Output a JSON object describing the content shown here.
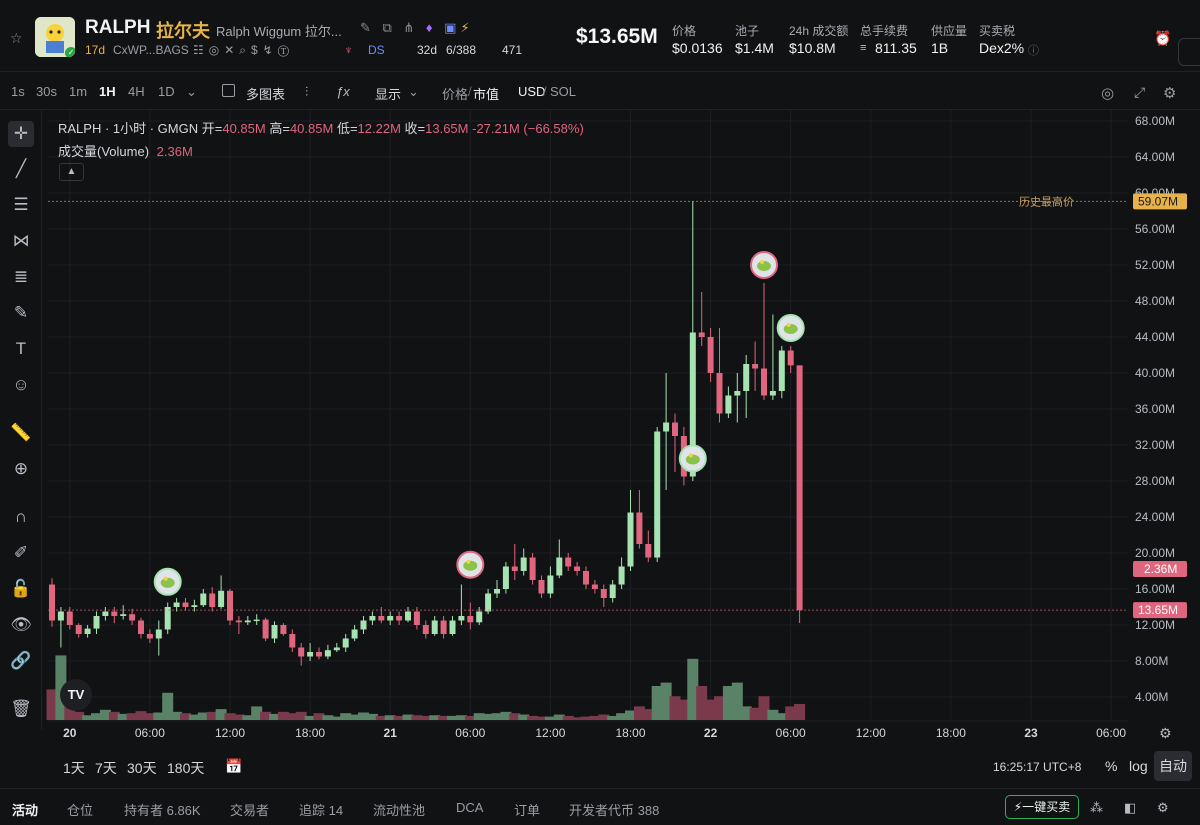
{
  "header": {
    "symbol": "RALPH",
    "name_cn": "拉尔夫",
    "full_name": "Ralph Wiggum 拉尔...",
    "age": "17d",
    "address": "CxWP...BAGS",
    "ds_label": "DS",
    "ds_days": "32d",
    "holders_ratio": "6/388",
    "views": "471",
    "market_cap": "$13.65M",
    "stats": [
      {
        "label": "价格",
        "value": "$0.0136"
      },
      {
        "label": "池子",
        "value": "$1.4M"
      },
      {
        "label": "24h 成交额",
        "value": "$10.8M"
      },
      {
        "label": "总手续费",
        "value": "811.35"
      },
      {
        "label": "供应量",
        "value": "1B"
      },
      {
        "label": "买卖税",
        "value": "Dex2%"
      }
    ]
  },
  "toolbar": {
    "timeframes": [
      "1s",
      "30s",
      "1m",
      "1H",
      "4H",
      "1D"
    ],
    "active_timeframe": "1H",
    "multi_chart": "多图表",
    "display": "显示",
    "price": "价格",
    "mcap": "市值",
    "usd": "USD",
    "sol": "SOL"
  },
  "legend": {
    "title": "RALPH · 1小时 · GMGN",
    "open_label": "开=",
    "open": "40.85M",
    "high_label": "高=",
    "high": "40.85M",
    "low_label": "低=",
    "low": "12.22M",
    "close_label": "收=",
    "close": "13.65M",
    "change": "-27.21M (−66.58%)",
    "volume_label": "成交量(Volume)",
    "volume": "2.36M"
  },
  "chart_data": {
    "type": "candlestick",
    "title": "RALPH · 1小时 · GMGN",
    "y_unit": "M (market cap, USD)",
    "ylim": [
      0,
      70
    ],
    "y_ticks": [
      "4.00M",
      "8.00M",
      "12.00M",
      "16.00M",
      "20.00M",
      "24.00M",
      "28.00M",
      "32.00M",
      "36.00M",
      "40.00M",
      "44.00M",
      "48.00M",
      "52.00M",
      "56.00M",
      "60.00M",
      "64.00M",
      "68.00M"
    ],
    "y_tick_values": [
      4,
      8,
      12,
      16,
      20,
      24,
      28,
      32,
      36,
      40,
      44,
      48,
      52,
      56,
      60,
      64,
      68
    ],
    "x_ticks": [
      "20",
      "06:00",
      "12:00",
      "18:00",
      "21",
      "06:00",
      "12:00",
      "18:00",
      "22",
      "06:00",
      "12:00",
      "18:00",
      "23",
      "06:00"
    ],
    "x_tick_index": [
      2,
      11,
      20,
      29,
      38,
      47,
      56,
      65,
      74,
      83,
      92,
      101,
      110,
      119
    ],
    "ath_label": "历史最高价",
    "ath_value": "59.07M",
    "ath": 59.07,
    "current_label": "13.65M",
    "current": 13.65,
    "volume_label": "2.36M",
    "volume_current": 2.36,
    "candles": [
      [
        0,
        16.5,
        12.5,
        17.2,
        11.8,
        4.5
      ],
      [
        1,
        12.5,
        13.5,
        14.0,
        9.5,
        9.5
      ],
      [
        2,
        13.5,
        12.0,
        14.0,
        11.5,
        2.0
      ],
      [
        3,
        12.0,
        11.0,
        12.2,
        10.6,
        1.2
      ],
      [
        4,
        11.0,
        11.6,
        12.0,
        10.6,
        0.7
      ],
      [
        5,
        11.6,
        13.0,
        13.5,
        11.0,
        1.0
      ],
      [
        6,
        13.0,
        13.5,
        14.0,
        12.5,
        1.5
      ],
      [
        7,
        13.5,
        13.0,
        14.0,
        12.2,
        1.2
      ],
      [
        8,
        13.0,
        13.2,
        14.2,
        12.6,
        0.9
      ],
      [
        9,
        13.2,
        12.5,
        13.8,
        12.0,
        1.0
      ],
      [
        10,
        12.5,
        11.0,
        12.8,
        10.5,
        1.3
      ],
      [
        11,
        11.0,
        10.5,
        11.5,
        10.0,
        1.0
      ],
      [
        12,
        10.5,
        11.5,
        12.5,
        8.6,
        1.1
      ],
      [
        13,
        11.5,
        14.0,
        14.5,
        11.0,
        4.0
      ],
      [
        14,
        14.0,
        14.5,
        15.0,
        13.5,
        1.2
      ],
      [
        15,
        14.5,
        14.0,
        15.0,
        13.6,
        1.0
      ],
      [
        16,
        14.0,
        14.2,
        14.8,
        13.5,
        0.8
      ],
      [
        17,
        14.2,
        15.5,
        16.0,
        14.0,
        1.1
      ],
      [
        18,
        15.5,
        14.0,
        16.2,
        13.5,
        1.2
      ],
      [
        19,
        14.0,
        15.8,
        17.5,
        13.8,
        1.6
      ],
      [
        20,
        15.8,
        12.5,
        16.0,
        12.0,
        1.0
      ],
      [
        21,
        12.5,
        12.3,
        13.0,
        11.0,
        0.8
      ],
      [
        22,
        12.3,
        12.5,
        13.0,
        12.0,
        0.7
      ],
      [
        23,
        12.5,
        12.6,
        13.2,
        12.0,
        2.0
      ],
      [
        24,
        12.6,
        10.5,
        12.8,
        10.2,
        1.2
      ],
      [
        25,
        10.5,
        12.0,
        12.4,
        10.0,
        0.9
      ],
      [
        26,
        12.0,
        11.0,
        12.2,
        10.8,
        1.2
      ],
      [
        27,
        11.0,
        9.5,
        11.5,
        9.0,
        1.0
      ],
      [
        28,
        9.5,
        8.5,
        10.0,
        7.5,
        1.2
      ],
      [
        29,
        8.5,
        9.0,
        10.0,
        8.0,
        0.6
      ],
      [
        30,
        9.0,
        8.5,
        9.5,
        8.2,
        1.0
      ],
      [
        31,
        8.5,
        9.2,
        9.8,
        8.2,
        0.7
      ],
      [
        32,
        9.2,
        9.5,
        10.0,
        9.0,
        0.5
      ],
      [
        33,
        9.5,
        10.5,
        11.0,
        9.0,
        1.0
      ],
      [
        34,
        10.5,
        11.5,
        12.0,
        10.2,
        0.8
      ],
      [
        35,
        11.5,
        12.5,
        13.0,
        11.0,
        1.1
      ],
      [
        36,
        12.5,
        13.0,
        13.5,
        12.0,
        0.9
      ],
      [
        37,
        13.0,
        12.5,
        14.0,
        12.2,
        0.6
      ],
      [
        38,
        12.5,
        13.0,
        13.5,
        12.0,
        0.7
      ],
      [
        39,
        13.0,
        12.5,
        13.5,
        12.0,
        0.6
      ],
      [
        40,
        12.5,
        13.5,
        14.0,
        12.3,
        0.8
      ],
      [
        41,
        13.5,
        12.0,
        14.0,
        11.5,
        0.7
      ],
      [
        42,
        12.0,
        11.0,
        12.5,
        10.5,
        0.6
      ],
      [
        43,
        11.0,
        12.5,
        13.0,
        10.8,
        0.7
      ],
      [
        44,
        12.5,
        11.0,
        13.0,
        10.5,
        0.6
      ],
      [
        45,
        11.0,
        12.5,
        13.0,
        10.8,
        0.6
      ],
      [
        46,
        12.5,
        13.0,
        16.5,
        12.0,
        0.7
      ],
      [
        47,
        13.0,
        12.3,
        14.5,
        11.5,
        0.6
      ],
      [
        48,
        12.3,
        13.5,
        14.0,
        12.0,
        1.0
      ],
      [
        49,
        13.5,
        15.5,
        16.0,
        13.2,
        0.9
      ],
      [
        50,
        15.5,
        16.0,
        17.0,
        15.0,
        1.0
      ],
      [
        51,
        16.0,
        18.5,
        19.0,
        15.5,
        1.2
      ],
      [
        52,
        18.5,
        18.0,
        21.0,
        17.0,
        1.0
      ],
      [
        53,
        18.0,
        19.5,
        20.5,
        17.5,
        0.8
      ],
      [
        54,
        19.5,
        17.0,
        20.0,
        16.5,
        0.6
      ],
      [
        55,
        17.0,
        15.5,
        17.5,
        15.0,
        0.5
      ],
      [
        56,
        15.5,
        17.5,
        18.5,
        15.0,
        0.5
      ],
      [
        57,
        17.5,
        19.5,
        21.5,
        17.2,
        0.8
      ],
      [
        58,
        19.5,
        18.5,
        20.0,
        18.0,
        0.6
      ],
      [
        59,
        18.5,
        18.0,
        19.0,
        17.5,
        0.4
      ],
      [
        60,
        18.0,
        16.5,
        18.5,
        16.0,
        0.5
      ],
      [
        61,
        16.5,
        16.0,
        17.0,
        15.5,
        0.6
      ],
      [
        62,
        16.0,
        15.0,
        16.5,
        14.0,
        0.8
      ],
      [
        63,
        15.0,
        16.5,
        17.0,
        14.5,
        0.6
      ],
      [
        64,
        16.5,
        18.5,
        19.5,
        16.0,
        1.0
      ],
      [
        65,
        18.5,
        24.5,
        27.0,
        18.0,
        1.4
      ],
      [
        66,
        24.5,
        21.0,
        27.0,
        20.5,
        2.0
      ],
      [
        67,
        21.0,
        19.5,
        22.5,
        19.0,
        1.6
      ],
      [
        68,
        19.5,
        33.5,
        34.0,
        19.0,
        5.0
      ],
      [
        69,
        33.5,
        34.5,
        40.0,
        27.0,
        5.5
      ],
      [
        70,
        34.5,
        33.0,
        35.5,
        29.0,
        3.5
      ],
      [
        71,
        33.0,
        28.5,
        34.0,
        27.5,
        3.0
      ],
      [
        72,
        28.5,
        44.5,
        59.07,
        28.0,
        9.0
      ],
      [
        73,
        44.5,
        44.0,
        49.0,
        43.0,
        5.0
      ],
      [
        74,
        44.0,
        40.0,
        45.0,
        39.0,
        3.0
      ],
      [
        75,
        40.0,
        35.5,
        45.0,
        34.5,
        3.5
      ],
      [
        76,
        35.5,
        37.5,
        38.5,
        35.0,
        5.0
      ],
      [
        77,
        37.5,
        38.0,
        40.0,
        34.5,
        5.5
      ],
      [
        78,
        38.0,
        41.0,
        42.0,
        35.0,
        2.0
      ],
      [
        79,
        41.0,
        40.5,
        43.5,
        38.0,
        1.8
      ],
      [
        80,
        40.5,
        37.5,
        50.0,
        37.0,
        3.5
      ],
      [
        81,
        37.5,
        38.0,
        46.5,
        37.0,
        1.5
      ],
      [
        82,
        38.0,
        42.5,
        43.0,
        37.2,
        1.0
      ],
      [
        83,
        42.5,
        40.85,
        43.0,
        40.0,
        2.0
      ],
      [
        84,
        40.85,
        13.65,
        40.85,
        12.22,
        2.36
      ]
    ]
  },
  "markers": [
    {
      "idx": 13,
      "price": 16.8,
      "type": "green"
    },
    {
      "idx": 47,
      "price": 18.7,
      "type": "red"
    },
    {
      "idx": 72,
      "price": 30.5,
      "type": "green"
    },
    {
      "idx": 80,
      "price": 52.0,
      "type": "red"
    },
    {
      "idx": 83,
      "price": 45.0,
      "type": "green"
    }
  ],
  "right_controls": {
    "percent": "%",
    "log": "log",
    "auto": "自动",
    "time": "16:25:17 UTC+8"
  },
  "ranges": [
    "1天",
    "7天",
    "30天",
    "180天"
  ],
  "bottom_tabs": [
    {
      "label": "活动",
      "active": true
    },
    {
      "label": "仓位"
    },
    {
      "label": "持有者 6.86K"
    },
    {
      "label": "交易者"
    },
    {
      "label": "追踪 14"
    },
    {
      "label": "流动性池"
    },
    {
      "label": "DCA"
    },
    {
      "label": "订单"
    },
    {
      "label": "开发者代币 388"
    }
  ],
  "buy_button": "⚡一键买卖",
  "colors": {
    "up": "#a6e3b1",
    "down": "#e0657e",
    "vol_up": "#5a8266",
    "vol_down": "#7a3a4c",
    "bg": "#111214",
    "grid": "#1d1f23",
    "accent": "#e8b24a"
  }
}
